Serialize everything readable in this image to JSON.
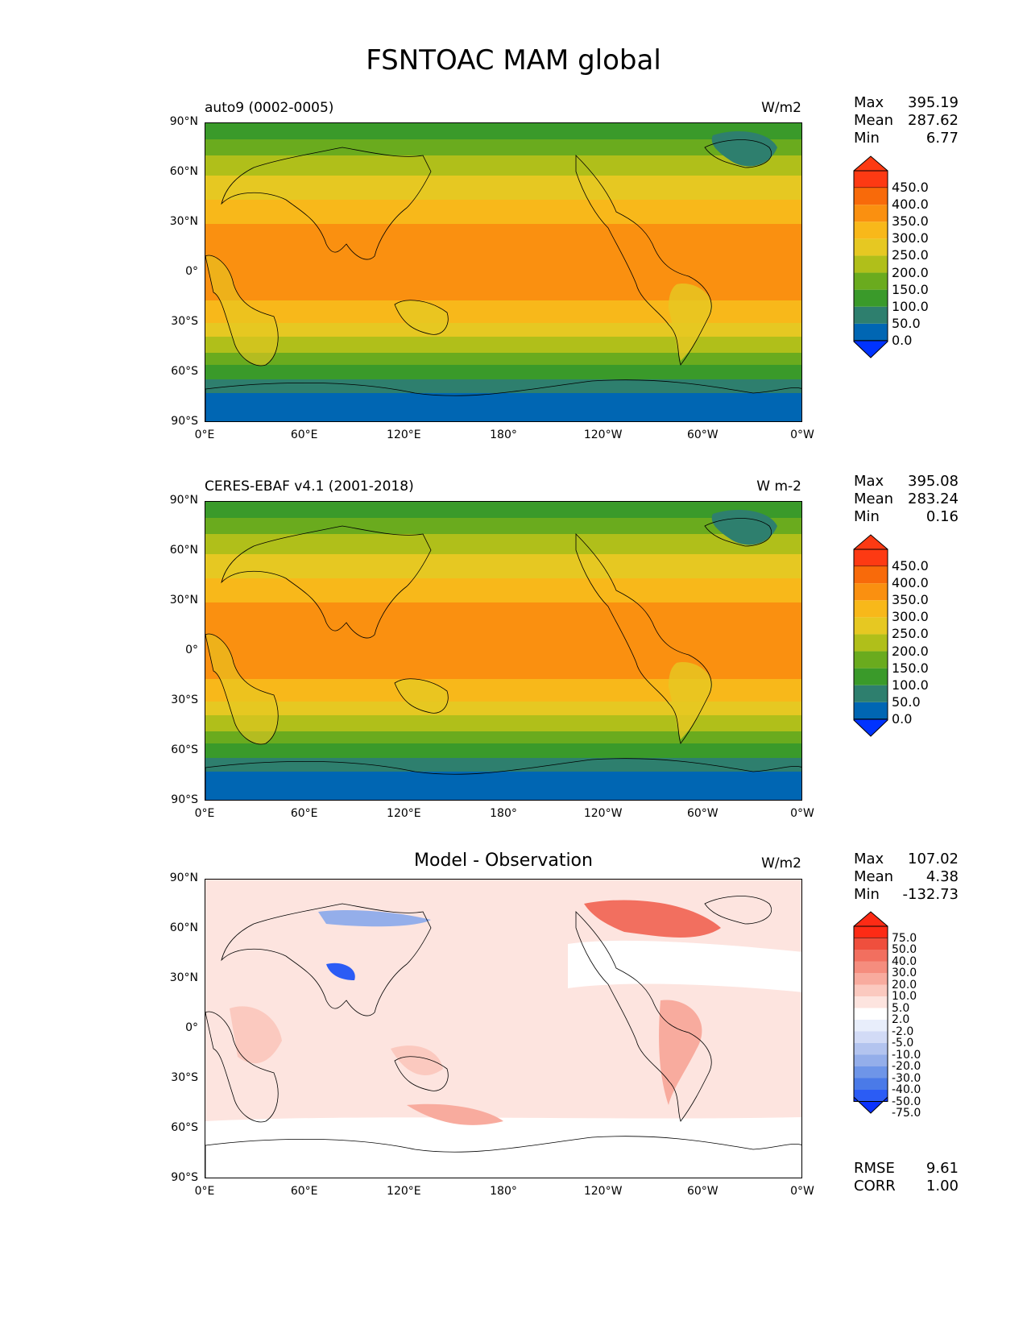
{
  "title": "FSNTOAC MAM global",
  "panels": [
    {
      "left_label": "auto9 (0002-0005)",
      "center_label": "",
      "units": "W/m2",
      "stats": {
        "max_label": "Max",
        "max": "395.19",
        "mean_label": "Mean",
        "mean": "287.62",
        "min_label": "Min",
        "min": "6.77"
      },
      "colorbar_ticks": [
        "450.0",
        "400.0",
        "350.0",
        "300.0",
        "250.0",
        "200.0",
        "150.0",
        "100.0",
        "50.0",
        "0.0"
      ]
    },
    {
      "left_label": "CERES-EBAF v4.1 (2001-2018)",
      "center_label": "",
      "units": "W m-2",
      "stats": {
        "max_label": "Max",
        "max": "395.08",
        "mean_label": "Mean",
        "mean": "283.24",
        "min_label": "Min",
        "min": "0.16"
      },
      "colorbar_ticks": [
        "450.0",
        "400.0",
        "350.0",
        "300.0",
        "250.0",
        "200.0",
        "150.0",
        "100.0",
        "50.0",
        "0.0"
      ]
    },
    {
      "left_label": "",
      "center_label": "Model - Observation",
      "units": "W/m2",
      "stats": {
        "max_label": "Max",
        "max": "107.02",
        "mean_label": "Mean",
        "mean": "4.38",
        "min_label": "Min",
        "min": "-132.73"
      },
      "colorbar_ticks": [
        "75.0",
        "50.0",
        "40.0",
        "30.0",
        "20.0",
        "10.0",
        "5.0",
        "2.0",
        "-2.0",
        "-5.0",
        "-10.0",
        "-20.0",
        "-30.0",
        "-40.0",
        "-50.0",
        "-75.0"
      ],
      "rmse_label": "RMSE",
      "rmse": "9.61",
      "corr_label": "CORR",
      "corr": "1.00"
    }
  ],
  "y_ticks": [
    "90°N",
    "60°N",
    "30°N",
    "0°",
    "30°S",
    "60°S",
    "90°S"
  ],
  "x_ticks": [
    "0°E",
    "60°E",
    "120°E",
    "180°",
    "120°W",
    "60°W",
    "0°W"
  ],
  "colors": {
    "field_levels": [
      "#0033ff",
      "#0066b3",
      "#2e7f6e",
      "#3a9a2a",
      "#6aab1e",
      "#b0bf1a",
      "#e6c822",
      "#f8b81a",
      "#fa9010",
      "#f86a0a",
      "#fd3a13"
    ],
    "diff_levels": [
      "#0b32ff",
      "#2b5cf5",
      "#4a7ae8",
      "#6e95e8",
      "#94aeea",
      "#b3c4ef",
      "#d2dbf6",
      "#e8eefb",
      "#ffffff",
      "#fde4df",
      "#fbc9bf",
      "#f8ab9e",
      "#f58d7e",
      "#f26f5f",
      "#ef4f3d",
      "#fd2b15"
    ]
  }
}
